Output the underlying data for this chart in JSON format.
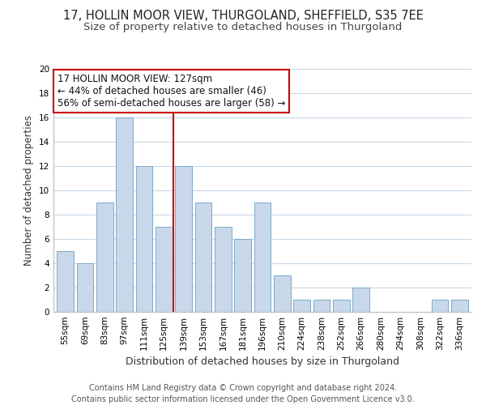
{
  "title": "17, HOLLIN MOOR VIEW, THURGOLAND, SHEFFIELD, S35 7EE",
  "subtitle": "Size of property relative to detached houses in Thurgoland",
  "xlabel": "Distribution of detached houses by size in Thurgoland",
  "ylabel": "Number of detached properties",
  "bar_color": "#c8d8ea",
  "bar_edge_color": "#7baac8",
  "grid_color": "#c8d8e8",
  "vline_color": "#cc0000",
  "vline_x": 5.5,
  "annotation_box_color": "#ffffff",
  "annotation_border_color": "#cc0000",
  "annotation_line1": "17 HOLLIN MOOR VIEW: 127sqm",
  "annotation_line2": "← 44% of detached houses are smaller (46)",
  "annotation_line3": "56% of semi-detached houses are larger (58) →",
  "categories": [
    "55sqm",
    "69sqm",
    "83sqm",
    "97sqm",
    "111sqm",
    "125sqm",
    "139sqm",
    "153sqm",
    "167sqm",
    "181sqm",
    "196sqm",
    "210sqm",
    "224sqm",
    "238sqm",
    "252sqm",
    "266sqm",
    "280sqm",
    "294sqm",
    "308sqm",
    "322sqm",
    "336sqm"
  ],
  "values": [
    5,
    4,
    9,
    16,
    12,
    7,
    12,
    9,
    7,
    6,
    9,
    3,
    1,
    1,
    1,
    2,
    0,
    0,
    0,
    1,
    1
  ],
  "ylim": [
    0,
    20
  ],
  "yticks": [
    0,
    2,
    4,
    6,
    8,
    10,
    12,
    14,
    16,
    18,
    20
  ],
  "footer_line1": "Contains HM Land Registry data © Crown copyright and database right 2024.",
  "footer_line2": "Contains public sector information licensed under the Open Government Licence v3.0.",
  "background_color": "#ffffff",
  "title_fontsize": 10.5,
  "subtitle_fontsize": 9.5,
  "xlabel_fontsize": 9,
  "ylabel_fontsize": 8.5,
  "tick_fontsize": 7.5,
  "annotation_fontsize": 8.5,
  "footer_fontsize": 7
}
